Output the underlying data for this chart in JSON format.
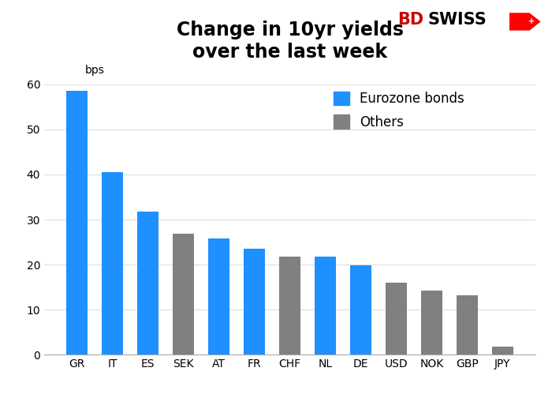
{
  "title": "Change in 10yr yields\nover the last week",
  "ylabel_text": "bps",
  "categories": [
    "GR",
    "IT",
    "ES",
    "SEK",
    "AT",
    "FR",
    "CHF",
    "NL",
    "DE",
    "USD",
    "NOK",
    "GBP",
    "JPY"
  ],
  "values": [
    58.5,
    40.6,
    31.7,
    26.8,
    25.8,
    23.5,
    21.8,
    21.7,
    19.9,
    16.0,
    14.2,
    13.2,
    1.7
  ],
  "colors": [
    "#1e90ff",
    "#1e90ff",
    "#1e90ff",
    "#808080",
    "#1e90ff",
    "#1e90ff",
    "#808080",
    "#1e90ff",
    "#1e90ff",
    "#808080",
    "#808080",
    "#808080",
    "#808080"
  ],
  "legend_blue": "Eurozone bonds",
  "legend_gray": "Others",
  "blue_color": "#1e90ff",
  "gray_color": "#808080",
  "ylim": [
    0,
    63
  ],
  "yticks": [
    0,
    10,
    20,
    30,
    40,
    50,
    60
  ],
  "title_fontsize": 17,
  "tick_fontsize": 10,
  "legend_fontsize": 12,
  "bps_fontsize": 10,
  "bg_color": "#ffffff",
  "bar_width": 0.6,
  "logo_bd_color": "#cc0000",
  "logo_swiss_color": "#000000",
  "logo_fontsize": 15
}
